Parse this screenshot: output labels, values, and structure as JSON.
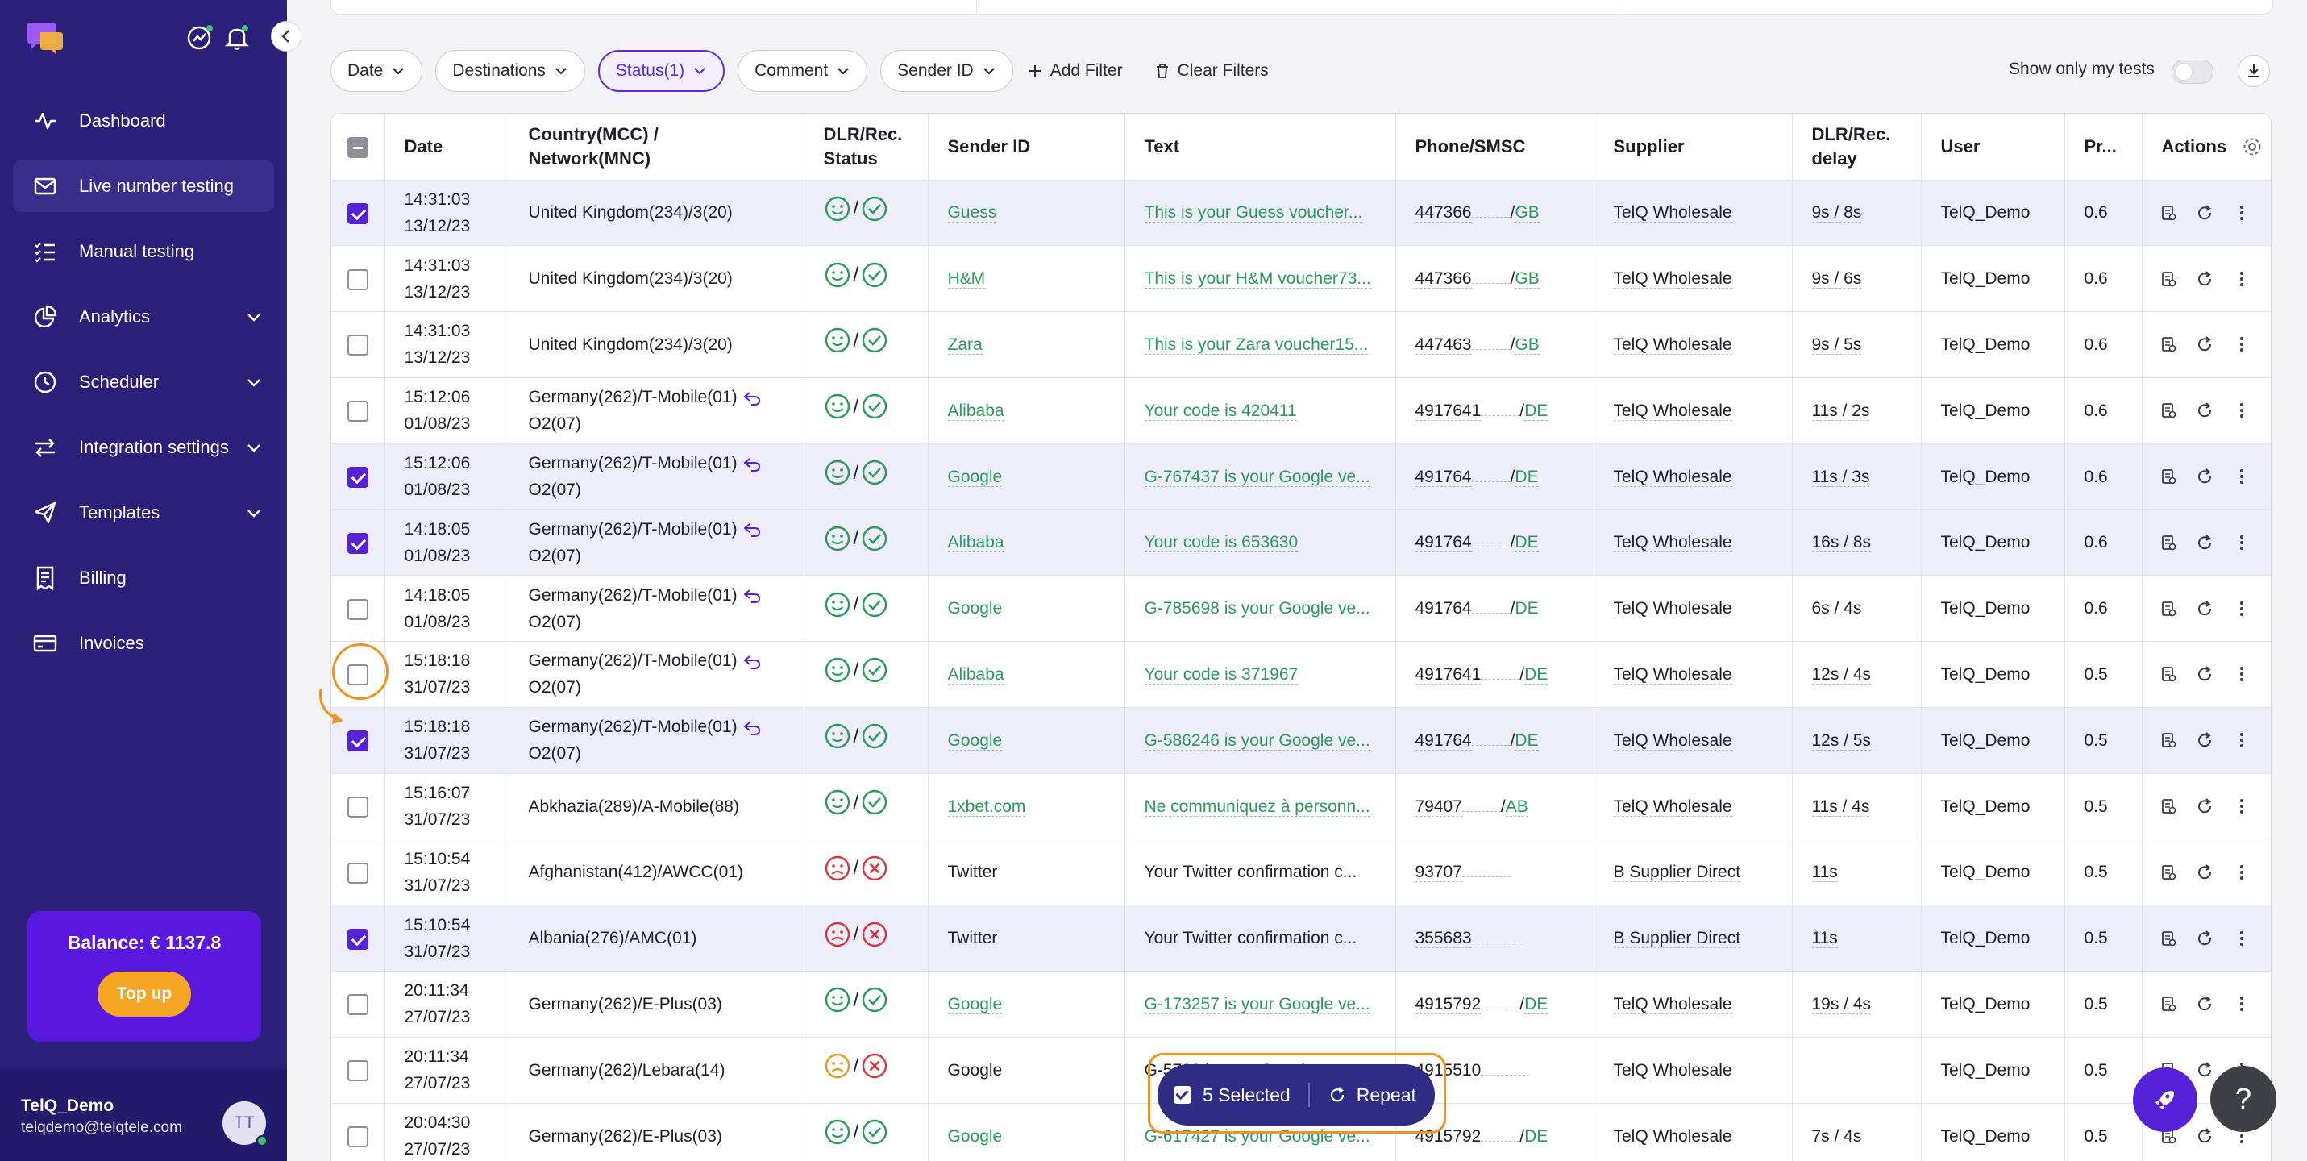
{
  "sidebar": {
    "nav": [
      {
        "label": "Dashboard",
        "icon": "activity-icon",
        "active": false
      },
      {
        "label": "Live number testing",
        "icon": "mail-icon",
        "active": true
      },
      {
        "label": "Manual testing",
        "icon": "checklist-icon",
        "active": false
      },
      {
        "label": "Analytics",
        "icon": "pie-chart-icon",
        "active": false,
        "expandable": true
      },
      {
        "label": "Scheduler",
        "icon": "clock-icon",
        "active": false,
        "expandable": true
      },
      {
        "label": "Integration settings",
        "icon": "arrows-swap-icon",
        "active": false,
        "expandable": true
      },
      {
        "label": "Templates",
        "icon": "send-icon",
        "active": false,
        "expandable": true
      },
      {
        "label": "Billing",
        "icon": "receipt-icon",
        "active": false
      },
      {
        "label": "Invoices",
        "icon": "card-icon",
        "active": false
      }
    ],
    "balance_label": "Balance: € 1137.8",
    "topup_label": "Top up",
    "user_name": "TelQ_Demo",
    "user_email": "telqdemo@telqtele.com",
    "avatar_initials": "TT"
  },
  "filters": {
    "date": "Date",
    "destinations": "Destinations",
    "status": "Status(1)",
    "comment": "Comment",
    "sender_id": "Sender ID",
    "add_filter": "Add Filter",
    "clear_filters": "Clear Filters",
    "show_only_my_tests": "Show only my tests"
  },
  "table": {
    "headers": {
      "date": "Date",
      "country": "Country(MCC) /",
      "network": "Network(MNC)",
      "dlr": "DLR/Rec.",
      "status": "Status",
      "sender_id": "Sender ID",
      "text": "Text",
      "phone": "Phone/SMSC",
      "supplier": "Supplier",
      "delay1": "DLR/Rec.",
      "delay2": "delay",
      "user": "User",
      "price": "Pr...",
      "actions": "Actions"
    },
    "rows": [
      {
        "selected": true,
        "time": "14:31:03",
        "date": "13/12/23",
        "country": "United Kingdom(234)/3(20)",
        "country2": "",
        "ported": false,
        "status": "ok",
        "sender": "Guess",
        "sender_link": true,
        "text": "This is your Guess voucher...",
        "text_link": true,
        "phone": "447366",
        "cc": "GB",
        "supplier": "TelQ Wholesale",
        "delay": "9s / 8s",
        "user": "TelQ_Demo",
        "price": "0.6"
      },
      {
        "selected": false,
        "time": "14:31:03",
        "date": "13/12/23",
        "country": "United Kingdom(234)/3(20)",
        "country2": "",
        "ported": false,
        "status": "ok",
        "sender": "H&M",
        "sender_link": true,
        "text": "This is your H&M voucher73...",
        "text_link": true,
        "phone": "447366",
        "cc": "GB",
        "supplier": "TelQ Wholesale",
        "delay": "9s / 6s",
        "user": "TelQ_Demo",
        "price": "0.6"
      },
      {
        "selected": false,
        "time": "14:31:03",
        "date": "13/12/23",
        "country": "United Kingdom(234)/3(20)",
        "country2": "",
        "ported": false,
        "status": "ok",
        "sender": "Zara",
        "sender_link": true,
        "text": "This is your Zara voucher15...",
        "text_link": true,
        "phone": "447463",
        "cc": "GB",
        "supplier": "TelQ Wholesale",
        "delay": "9s / 5s",
        "user": "TelQ_Demo",
        "price": "0.6"
      },
      {
        "selected": false,
        "time": "15:12:06",
        "date": "01/08/23",
        "country": "Germany(262)/T-Mobile(01)",
        "country2": "O2(07)",
        "ported": true,
        "status": "ok",
        "sender": "Alibaba",
        "sender_link": true,
        "text": "Your code is 420411",
        "text_link": true,
        "phone": "4917641",
        "cc": "DE",
        "supplier": "TelQ Wholesale",
        "delay": "11s / 2s",
        "user": "TelQ_Demo",
        "price": "0.6"
      },
      {
        "selected": true,
        "time": "15:12:06",
        "date": "01/08/23",
        "country": "Germany(262)/T-Mobile(01)",
        "country2": "O2(07)",
        "ported": true,
        "status": "ok",
        "sender": "Google",
        "sender_link": true,
        "text": "G-767437 is your Google ve...",
        "text_link": true,
        "phone": "491764",
        "cc": "DE",
        "supplier": "TelQ Wholesale",
        "delay": "11s / 3s",
        "user": "TelQ_Demo",
        "price": "0.6"
      },
      {
        "selected": true,
        "time": "14:18:05",
        "date": "01/08/23",
        "country": "Germany(262)/T-Mobile(01)",
        "country2": "O2(07)",
        "ported": true,
        "status": "ok",
        "sender": "Alibaba",
        "sender_link": true,
        "text": "Your code is 653630",
        "text_link": true,
        "phone": "491764",
        "cc": "DE",
        "supplier": "TelQ Wholesale",
        "delay": "16s / 8s",
        "user": "TelQ_Demo",
        "price": "0.6"
      },
      {
        "selected": false,
        "time": "14:18:05",
        "date": "01/08/23",
        "country": "Germany(262)/T-Mobile(01)",
        "country2": "O2(07)",
        "ported": true,
        "status": "ok",
        "sender": "Google",
        "sender_link": true,
        "text": "G-785698 is your Google ve...",
        "text_link": true,
        "phone": "491764",
        "cc": "DE",
        "supplier": "TelQ Wholesale",
        "delay": "6s / 4s",
        "user": "TelQ_Demo",
        "price": "0.6"
      },
      {
        "selected": false,
        "time": "15:18:18",
        "date": "31/07/23",
        "country": "Germany(262)/T-Mobile(01)",
        "country2": "O2(07)",
        "ported": true,
        "status": "ok",
        "sender": "Alibaba",
        "sender_link": true,
        "text": "Your code is 371967",
        "text_link": true,
        "phone": "4917641",
        "cc": "DE",
        "supplier": "TelQ Wholesale",
        "delay": "12s / 4s",
        "user": "TelQ_Demo",
        "price": "0.5"
      },
      {
        "selected": true,
        "time": "15:18:18",
        "date": "31/07/23",
        "country": "Germany(262)/T-Mobile(01)",
        "country2": "O2(07)",
        "ported": true,
        "status": "ok",
        "sender": "Google",
        "sender_link": true,
        "text": "G-586246 is your Google ve...",
        "text_link": true,
        "phone": "491764",
        "cc": "DE",
        "supplier": "TelQ Wholesale",
        "delay": "12s / 5s",
        "user": "TelQ_Demo",
        "price": "0.5"
      },
      {
        "selected": false,
        "time": "15:16:07",
        "date": "31/07/23",
        "country": "Abkhazia(289)/A-Mobile(88)",
        "country2": "",
        "ported": false,
        "status": "ok",
        "sender": "1xbet.com",
        "sender_link": true,
        "text": "Ne communiquez à personn...",
        "text_link": true,
        "phone": "79407",
        "cc": "AB",
        "supplier": "TelQ Wholesale",
        "delay": "11s / 4s",
        "user": "TelQ_Demo",
        "price": "0.5"
      },
      {
        "selected": false,
        "time": "15:10:54",
        "date": "31/07/23",
        "country": "Afghanistan(412)/AWCC(01)",
        "country2": "",
        "ported": false,
        "status": "fail",
        "sender": "Twitter",
        "sender_link": false,
        "text": "Your Twitter confirmation c...",
        "text_link": false,
        "phone": "93707",
        "cc": "",
        "supplier": "B Supplier Direct",
        "delay": "11s",
        "user": "TelQ_Demo",
        "price": "0.5"
      },
      {
        "selected": true,
        "time": "15:10:54",
        "date": "31/07/23",
        "country": "Albania(276)/AMC(01)",
        "country2": "",
        "ported": false,
        "status": "fail",
        "sender": "Twitter",
        "sender_link": false,
        "text": "Your Twitter confirmation c...",
        "text_link": false,
        "phone": "355683",
        "cc": "",
        "supplier": "B Supplier Direct",
        "delay": "11s",
        "user": "TelQ_Demo",
        "price": "0.5"
      },
      {
        "selected": false,
        "time": "20:11:34",
        "date": "27/07/23",
        "country": "Germany(262)/E-Plus(03)",
        "country2": "",
        "ported": false,
        "status": "ok",
        "sender": "Google",
        "sender_link": true,
        "text": "G-173257 is your Google ve...",
        "text_link": true,
        "phone": "4915792",
        "cc": "DE",
        "supplier": "TelQ Wholesale",
        "delay": "19s / 4s",
        "user": "TelQ_Demo",
        "price": "0.5"
      },
      {
        "selected": false,
        "time": "20:11:34",
        "date": "27/07/23",
        "country": "Germany(262)/Lebara(14)",
        "country2": "",
        "ported": false,
        "status": "warn",
        "sender": "Google",
        "sender_link": false,
        "text": "G-5700 is your Google ve...",
        "text_link": false,
        "phone": "4915510",
        "cc": "",
        "supplier": "TelQ Wholesale",
        "delay": "",
        "user": "TelQ_Demo",
        "price": "0.5"
      },
      {
        "selected": false,
        "time": "20:04:30",
        "date": "27/07/23",
        "country": "Germany(262)/E-Plus(03)",
        "country2": "",
        "ported": false,
        "status": "ok",
        "sender": "Google",
        "sender_link": true,
        "text": "G-617427 is your Google ve...",
        "text_link": true,
        "phone": "4915792",
        "cc": "DE",
        "supplier": "TelQ Wholesale",
        "delay": "7s / 4s",
        "user": "TelQ_Demo",
        "price": "0.5"
      }
    ]
  },
  "selection_bar": {
    "selected_label": "5 Selected",
    "repeat_label": "Repeat"
  },
  "help_label": "?",
  "colors": {
    "sidebar": "#2b1f7a",
    "accent": "#5522d8",
    "success": "#2c9a5b",
    "fail": "#d9363e",
    "warn": "#ef9322",
    "annotation": "#ef9322"
  }
}
